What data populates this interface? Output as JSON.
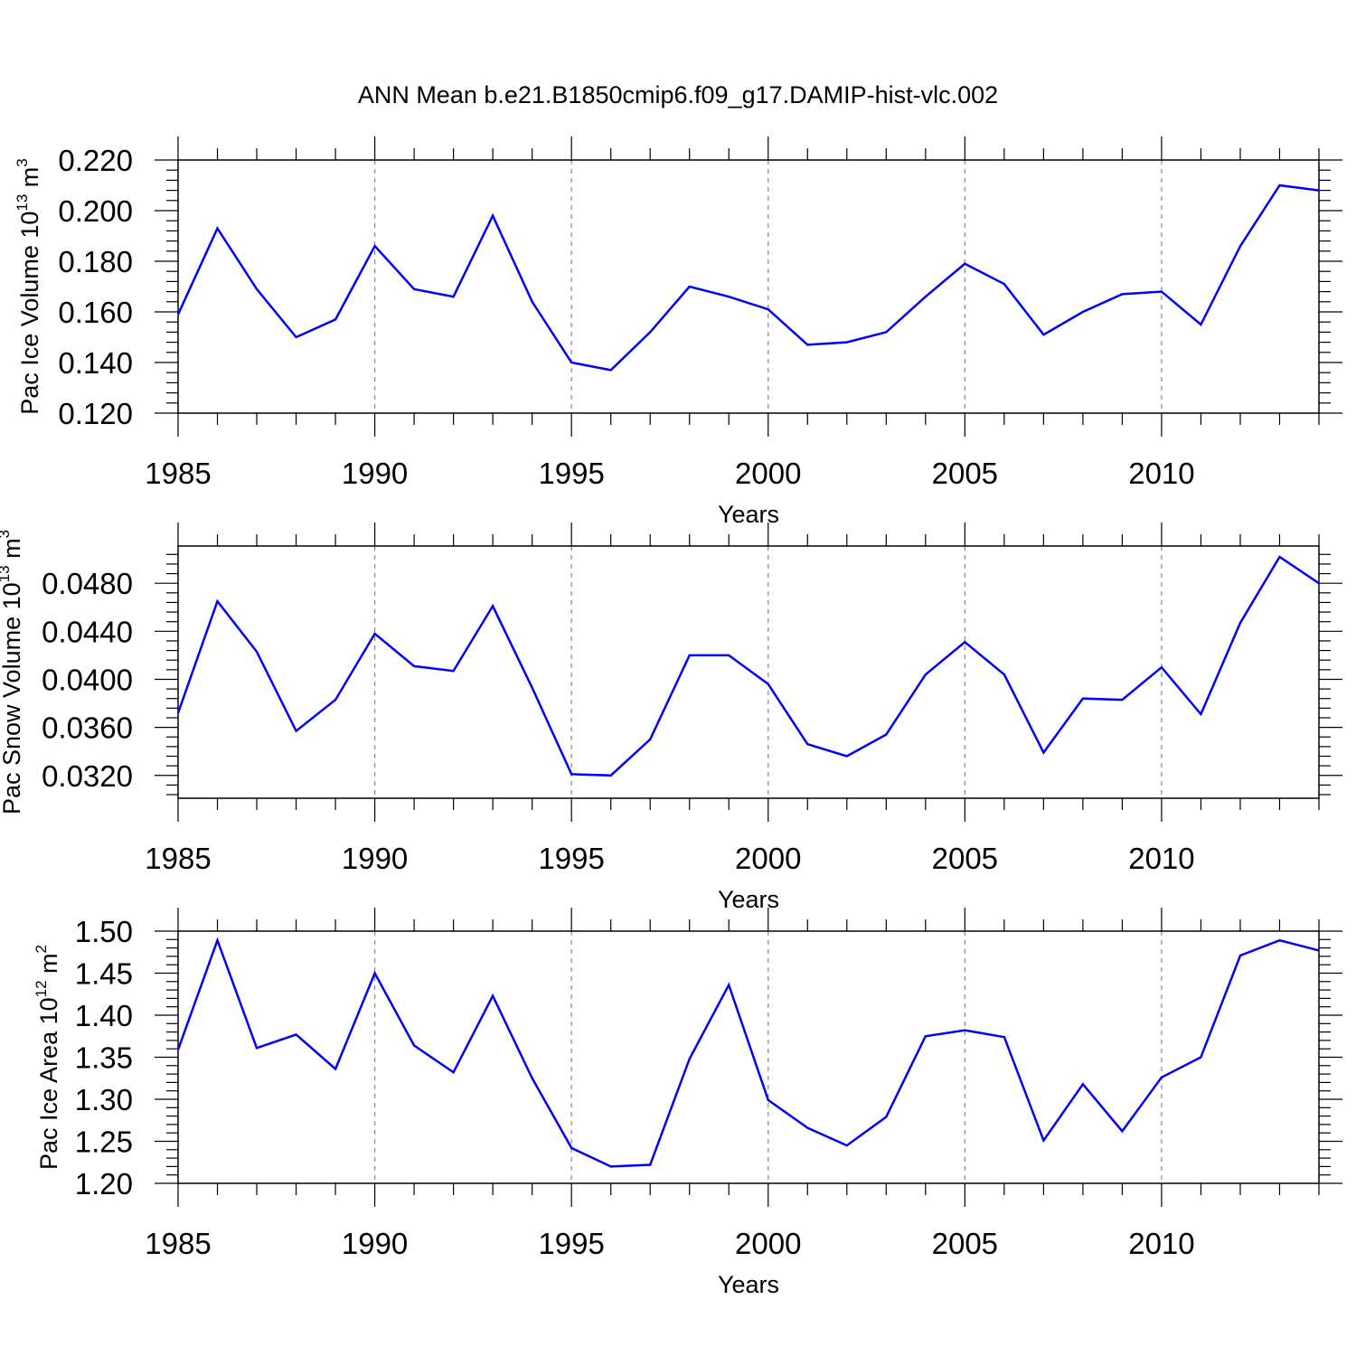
{
  "title": "ANN Mean b.e21.B1850cmip6.f09_g17.DAMIP-hist-vlc.002",
  "line_color": "#0000ff",
  "chart_data": [
    {
      "type": "line",
      "xlabel": "Years",
      "ylabel": "Pac Ice Volume 10",
      "ylabel_exp": "13",
      "ylabel_unit": " m",
      "ylabel_unit_exp": "3",
      "xlim": [
        1985,
        2014
      ],
      "ylim": [
        0.12,
        0.22
      ],
      "xticks": [
        1985,
        1990,
        1995,
        2000,
        2005,
        2010
      ],
      "yticks": [
        "0.120",
        "0.140",
        "0.160",
        "0.180",
        "0.200",
        "0.220"
      ],
      "x": [
        1985,
        1986,
        1987,
        1988,
        1989,
        1990,
        1991,
        1992,
        1993,
        1994,
        1995,
        1996,
        1997,
        1998,
        1999,
        2000,
        2001,
        2002,
        2003,
        2004,
        2005,
        2006,
        2007,
        2008,
        2009,
        2010,
        2011,
        2012,
        2013,
        2014
      ],
      "values": [
        0.159,
        0.193,
        0.169,
        0.15,
        0.157,
        0.186,
        0.169,
        0.166,
        0.198,
        0.164,
        0.14,
        0.137,
        0.152,
        0.17,
        0.166,
        0.161,
        0.147,
        0.148,
        0.152,
        0.166,
        0.179,
        0.171,
        0.151,
        0.16,
        0.167,
        0.168,
        0.155,
        0.186,
        0.21,
        0.208
      ]
    },
    {
      "type": "line",
      "xlabel": "Years",
      "ylabel": "Pac Snow Volume 10",
      "ylabel_exp": "13",
      "ylabel_unit": " m",
      "ylabel_unit_exp": "3",
      "xlim": [
        1985,
        2014
      ],
      "ylim": [
        0.0301,
        0.0511
      ],
      "xticks": [
        1985,
        1990,
        1995,
        2000,
        2005,
        2010
      ],
      "yticks": [
        "0.0320",
        "0.0360",
        "0.0400",
        "0.0440",
        "0.0480"
      ],
      "x": [
        1985,
        1986,
        1987,
        1988,
        1989,
        1990,
        1991,
        1992,
        1993,
        1994,
        1995,
        1996,
        1997,
        1998,
        1999,
        2000,
        2001,
        2002,
        2003,
        2004,
        2005,
        2006,
        2007,
        2008,
        2009,
        2010,
        2011,
        2012,
        2013,
        2014
      ],
      "values": [
        0.0372,
        0.0465,
        0.0423,
        0.0357,
        0.0383,
        0.0438,
        0.0411,
        0.0407,
        0.0461,
        0.0393,
        0.0321,
        0.032,
        0.035,
        0.042,
        0.042,
        0.0396,
        0.0346,
        0.0336,
        0.0354,
        0.0404,
        0.0431,
        0.0404,
        0.0339,
        0.0384,
        0.0383,
        0.041,
        0.0371,
        0.0447,
        0.0502,
        0.048
      ]
    },
    {
      "type": "line",
      "xlabel": "Years",
      "ylabel": "Pac Ice Area 10",
      "ylabel_exp": "12",
      "ylabel_unit": " m",
      "ylabel_unit_exp": "2",
      "xlim": [
        1985,
        2014
      ],
      "ylim": [
        1.2,
        1.5
      ],
      "xticks": [
        1985,
        1990,
        1995,
        2000,
        2005,
        2010
      ],
      "yticks": [
        "1.20",
        "1.25",
        "1.30",
        "1.35",
        "1.40",
        "1.45",
        "1.50"
      ],
      "x": [
        1985,
        1986,
        1987,
        1988,
        1989,
        1990,
        1991,
        1992,
        1993,
        1994,
        1995,
        1996,
        1997,
        1998,
        1999,
        2000,
        2001,
        2002,
        2003,
        2004,
        2005,
        2006,
        2007,
        2008,
        2009,
        2010,
        2011,
        2012,
        2013,
        2014
      ],
      "values": [
        1.359,
        1.489,
        1.361,
        1.377,
        1.336,
        1.45,
        1.364,
        1.332,
        1.423,
        1.325,
        1.242,
        1.22,
        1.222,
        1.348,
        1.436,
        1.299,
        1.266,
        1.245,
        1.279,
        1.375,
        1.382,
        1.374,
        1.251,
        1.318,
        1.262,
        1.326,
        1.35,
        1.471,
        1.489,
        1.477
      ]
    }
  ]
}
